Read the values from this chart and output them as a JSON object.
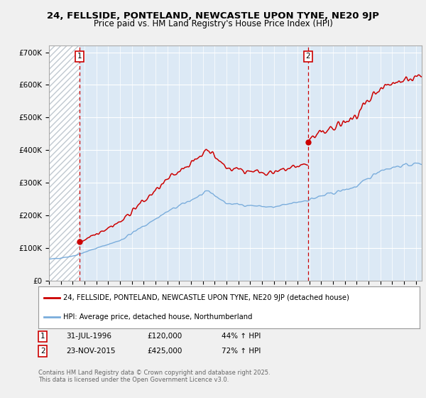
{
  "title_line1": "24, FELLSIDE, PONTELAND, NEWCASTLE UPON TYNE, NE20 9JP",
  "title_line2": "Price paid vs. HM Land Registry's House Price Index (HPI)",
  "ylim": [
    0,
    720000
  ],
  "yticks": [
    0,
    100000,
    200000,
    300000,
    400000,
    500000,
    600000,
    700000
  ],
  "ytick_labels": [
    "£0",
    "£100K",
    "£200K",
    "£300K",
    "£400K",
    "£500K",
    "£600K",
    "£700K"
  ],
  "xlim_start": 1994.0,
  "xlim_end": 2025.5,
  "purchase1_date": 1996.58,
  "purchase1_price": 120000,
  "purchase2_date": 2015.9,
  "purchase2_price": 425000,
  "legend_line1": "24, FELLSIDE, PONTELAND, NEWCASTLE UPON TYNE, NE20 9JP (detached house)",
  "legend_line2": "HPI: Average price, detached house, Northumberland",
  "ann1_date": "31-JUL-1996",
  "ann1_price": "£120,000",
  "ann1_hpi": "44% ↑ HPI",
  "ann2_date": "23-NOV-2015",
  "ann2_price": "£425,000",
  "ann2_hpi": "72% ↑ HPI",
  "footer": "Contains HM Land Registry data © Crown copyright and database right 2025.\nThis data is licensed under the Open Government Licence v3.0.",
  "hpi_color": "#7aaddc",
  "price_color": "#cc0000",
  "background_color": "#f0f0f0",
  "plot_bg_color": "#dce9f5",
  "grid_color": "#ffffff",
  "hatch_color": "#c0c8d0"
}
